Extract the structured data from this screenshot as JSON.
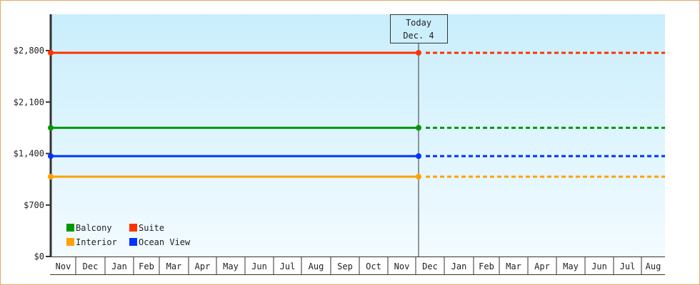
{
  "chart_data": {
    "type": "line",
    "title": "",
    "xlabel": "",
    "ylabel": "",
    "ylim": [
      0,
      3300
    ],
    "y_ticks": [
      "$0",
      "$700",
      "$1,400",
      "$2,100",
      "$2,800"
    ],
    "y_tick_values": [
      0,
      700,
      1400,
      2100,
      2800
    ],
    "x_ticks": [
      "Nov",
      "Dec",
      "Jan",
      "Feb",
      "Mar",
      "Apr",
      "May",
      "Jun",
      "Jul",
      "Aug",
      "Sep",
      "Oct",
      "Nov",
      "Dec",
      "Jan",
      "Feb",
      "Mar",
      "Apr",
      "May",
      "Jun",
      "Jul",
      "Aug"
    ],
    "grid": false,
    "background": [
      "#c9eefc",
      "#f3fbff"
    ],
    "today_marker": {
      "line1": "Today",
      "line2": "Dec. 4",
      "month_index": 13
    },
    "series": [
      {
        "name": "Suite",
        "value": 2770,
        "color": "#ff3300"
      },
      {
        "name": "Balcony",
        "value": 1750,
        "color": "#009900"
      },
      {
        "name": "Ocean View",
        "value": 1365,
        "color": "#0033ff"
      },
      {
        "name": "Interior",
        "value": 1085,
        "color": "#ffa000"
      }
    ],
    "solid_until": "today",
    "dotted_after": "today",
    "legend": {
      "placement": "bottom-left",
      "items": [
        {
          "label": "Balcony",
          "color": "#009900"
        },
        {
          "label": "Suite",
          "color": "#ff3300"
        },
        {
          "label": "Interior",
          "color": "#ffa000"
        },
        {
          "label": "Ocean View",
          "color": "#0033ff"
        }
      ]
    }
  }
}
